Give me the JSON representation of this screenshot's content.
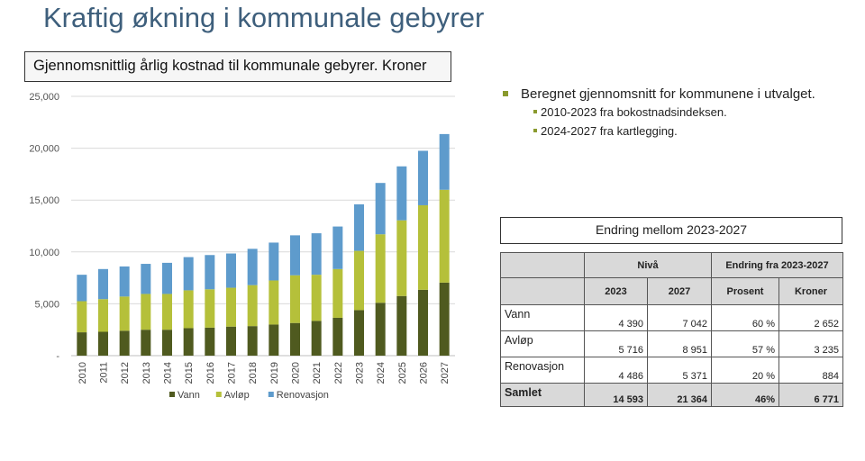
{
  "slide": {
    "title": "Kraftig økning i kommunale gebyrer"
  },
  "chart_title": "Gjennomsnittlig årlig kostnad til kommunale gebyrer. Kroner",
  "chart_data": {
    "type": "bar",
    "stacked": true,
    "categories": [
      "2010",
      "2011",
      "2012",
      "2013",
      "2014",
      "2015",
      "2016",
      "2017",
      "2018",
      "2019",
      "2020",
      "2021",
      "2022",
      "2023",
      "2024",
      "2025",
      "2026",
      "2027"
    ],
    "series": [
      {
        "name": "Vann",
        "color": "#4f5a1f",
        "values": [
          2250,
          2300,
          2400,
          2500,
          2500,
          2650,
          2700,
          2800,
          2850,
          3000,
          3150,
          3350,
          3650,
          4390,
          5100,
          5750,
          6350,
          7042
        ]
      },
      {
        "name": "Avløp",
        "color": "#b5c03a",
        "values": [
          3000,
          3150,
          3300,
          3450,
          3450,
          3650,
          3700,
          3750,
          3950,
          4250,
          4600,
          4450,
          4700,
          5716,
          6600,
          7300,
          8150,
          8951
        ]
      },
      {
        "name": "Renovasjon",
        "color": "#5e9bcc",
        "values": [
          2550,
          2900,
          2900,
          2900,
          3000,
          3200,
          3300,
          3300,
          3500,
          3650,
          3850,
          4000,
          4100,
          4486,
          4950,
          5200,
          5250,
          5371
        ]
      }
    ],
    "ylim": [
      0,
      25000
    ],
    "yticks": [
      "-",
      "5,000",
      "10,000",
      "15,000",
      "20,000",
      "25,000"
    ],
    "grid": true,
    "legend": "bottom"
  },
  "bullets": {
    "main": "Beregnet gjennomsnitt for kommunene i utvalget.",
    "sub": [
      "2010-2023 fra bokostnadsindeksen.",
      "2024-2027 fra kartlegging."
    ]
  },
  "table": {
    "title": "Endring mellom 2023-2027",
    "group_headers": [
      "Nivå",
      "Endring fra 2023-2027"
    ],
    "col_headers": [
      "2023",
      "2027",
      "Prosent",
      "Kroner"
    ],
    "rows": [
      {
        "label": "Vann",
        "cells": [
          "4 390",
          "7 042",
          "60 %",
          "2 652"
        ]
      },
      {
        "label": "Avløp",
        "cells": [
          "5 716",
          "8 951",
          "57 %",
          "3 235"
        ]
      },
      {
        "label": "Renovasjon",
        "cells": [
          "4 486",
          "5 371",
          "20 %",
          "884"
        ]
      }
    ],
    "total": {
      "label": "Samlet",
      "cells": [
        "14 593",
        "21 364",
        "46%",
        "6 771"
      ]
    }
  }
}
